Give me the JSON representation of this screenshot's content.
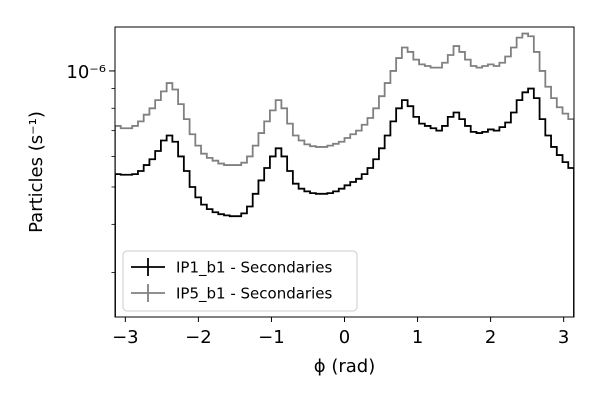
{
  "chart_data": {
    "type": "line",
    "drawstyle": "steps-mid",
    "xlabel": "ϕ (rad)",
    "ylabel": "Particles (s⁻¹)",
    "xscale": "linear",
    "yscale": "log",
    "xlim": [
      -3.1416,
      3.1416
    ],
    "ylim": [
      2.3e-07,
      1.3e-06
    ],
    "xticks": [
      -3,
      -2,
      -1,
      0,
      1,
      2,
      3
    ],
    "xtick_labels": [
      "−3",
      "−2",
      "−1",
      "0",
      "1",
      "2",
      "3"
    ],
    "yticks": [
      1e-06
    ],
    "ytick_labels": [
      "10⁻⁶"
    ],
    "grid": false,
    "legend": "lower-left",
    "bin_width": 0.0785,
    "x": [
      -3.1023,
      -3.0238,
      -2.9453,
      -2.8667,
      -2.7882,
      -2.7096,
      -2.6311,
      -2.5525,
      -2.474,
      -2.3955,
      -2.3169,
      -2.2384,
      -2.1598,
      -2.0813,
      -2.0028,
      -1.9242,
      -1.8457,
      -1.7671,
      -1.6886,
      -1.61,
      -1.5315,
      -1.453,
      -1.3744,
      -1.2959,
      -1.2173,
      -1.1388,
      -1.0603,
      -0.9817,
      -0.9032,
      -0.8246,
      -0.7461,
      -0.6675,
      -0.589,
      -0.5105,
      -0.4319,
      -0.3534,
      -0.2748,
      -0.1963,
      -0.1178,
      -0.0392,
      0.0393,
      0.1178,
      0.1964,
      0.2749,
      0.3534,
      0.432,
      0.5105,
      0.5891,
      0.6676,
      0.7461,
      0.8247,
      0.9032,
      0.9818,
      1.0603,
      1.1388,
      1.2174,
      1.2959,
      1.3745,
      1.453,
      1.5316,
      1.6101,
      1.6886,
      1.7672,
      1.8457,
      1.9243,
      2.0028,
      2.0813,
      2.1599,
      2.2384,
      2.317,
      2.3955,
      2.474,
      2.5526,
      2.6311,
      2.7097,
      2.7882,
      2.8667,
      2.9453,
      3.0238,
      3.1024
    ],
    "series": [
      {
        "name": "IP1_b1 - Secondaries",
        "color": "#000000",
        "values": [
          5.4e-07,
          5.38e-07,
          5.38e-07,
          5.4e-07,
          5.5e-07,
          5.7e-07,
          5.9e-07,
          6.2e-07,
          6.6e-07,
          6.8e-07,
          6.55e-07,
          6e-07,
          5.5e-07,
          5e-07,
          4.7e-07,
          4.5e-07,
          4.38e-07,
          4.3e-07,
          4.25e-07,
          4.22e-07,
          4.2e-07,
          4.2e-07,
          4.27e-07,
          4.45e-07,
          4.8e-07,
          5.2e-07,
          5.6e-07,
          6e-07,
          6.3e-07,
          6e-07,
          5.5e-07,
          5.1e-07,
          4.95e-07,
          4.87e-07,
          4.82e-07,
          4.8e-07,
          4.8e-07,
          4.82e-07,
          4.87e-07,
          4.95e-07,
          5.05e-07,
          5.15e-07,
          5.25e-07,
          5.4e-07,
          5.6e-07,
          5.9e-07,
          6.3e-07,
          6.8e-07,
          7.4e-07,
          8e-07,
          8.4e-07,
          8.1e-07,
          7.6e-07,
          7.3e-07,
          7.2e-07,
          7.1e-07,
          7e-07,
          7.2e-07,
          7.6e-07,
          7.8e-07,
          7.5e-07,
          7.2e-07,
          6.95e-07,
          6.9e-07,
          6.95e-07,
          7.05e-07,
          7e-07,
          7.15e-07,
          7.35e-07,
          7.8e-07,
          8.4e-07,
          8.8e-07,
          9e-07,
          8.5e-07,
          7.5e-07,
          6.8e-07,
          6.35e-07,
          6.05e-07,
          5.8e-07,
          5.6e-07
        ]
      },
      {
        "name": "IP5_b1 - Secondaries",
        "color": "#808080",
        "values": [
          7.2e-07,
          7.1e-07,
          7.1e-07,
          7.2e-07,
          7.4e-07,
          7.7e-07,
          8e-07,
          8.4e-07,
          8.85e-07,
          9.3e-07,
          8.95e-07,
          8.2e-07,
          7.5e-07,
          6.85e-07,
          6.4e-07,
          6.1e-07,
          5.95e-07,
          5.85e-07,
          5.75e-07,
          5.7e-07,
          5.7e-07,
          5.7e-07,
          5.78e-07,
          6e-07,
          6.4e-07,
          6.9e-07,
          7.4e-07,
          7.9e-07,
          8.4e-07,
          8e-07,
          7.3e-07,
          6.8e-07,
          6.6e-07,
          6.45e-07,
          6.38e-07,
          6.35e-07,
          6.35e-07,
          6.4e-07,
          6.47e-07,
          6.55e-07,
          6.7e-07,
          6.85e-07,
          7e-07,
          7.25e-07,
          7.55e-07,
          8e-07,
          8.6e-07,
          9.3e-07,
          1e-06,
          1.08e-06,
          1.15e-06,
          1.12e-06,
          1.07e-06,
          1.04e-06,
          1.03e-06,
          1.02e-06,
          1.02e-06,
          1.05e-06,
          1.1e-06,
          1.16e-06,
          1.12e-06,
          1.07e-06,
          1.03e-06,
          1.02e-06,
          1.03e-06,
          1.04e-06,
          1.03e-06,
          1.05e-06,
          1.09e-06,
          1.15e-06,
          1.22e-06,
          1.25e-06,
          1.23e-06,
          1.12e-06,
          1e-06,
          9.1e-07,
          8.5e-07,
          8.05e-07,
          7.75e-07,
          7.5e-07
        ]
      }
    ]
  }
}
